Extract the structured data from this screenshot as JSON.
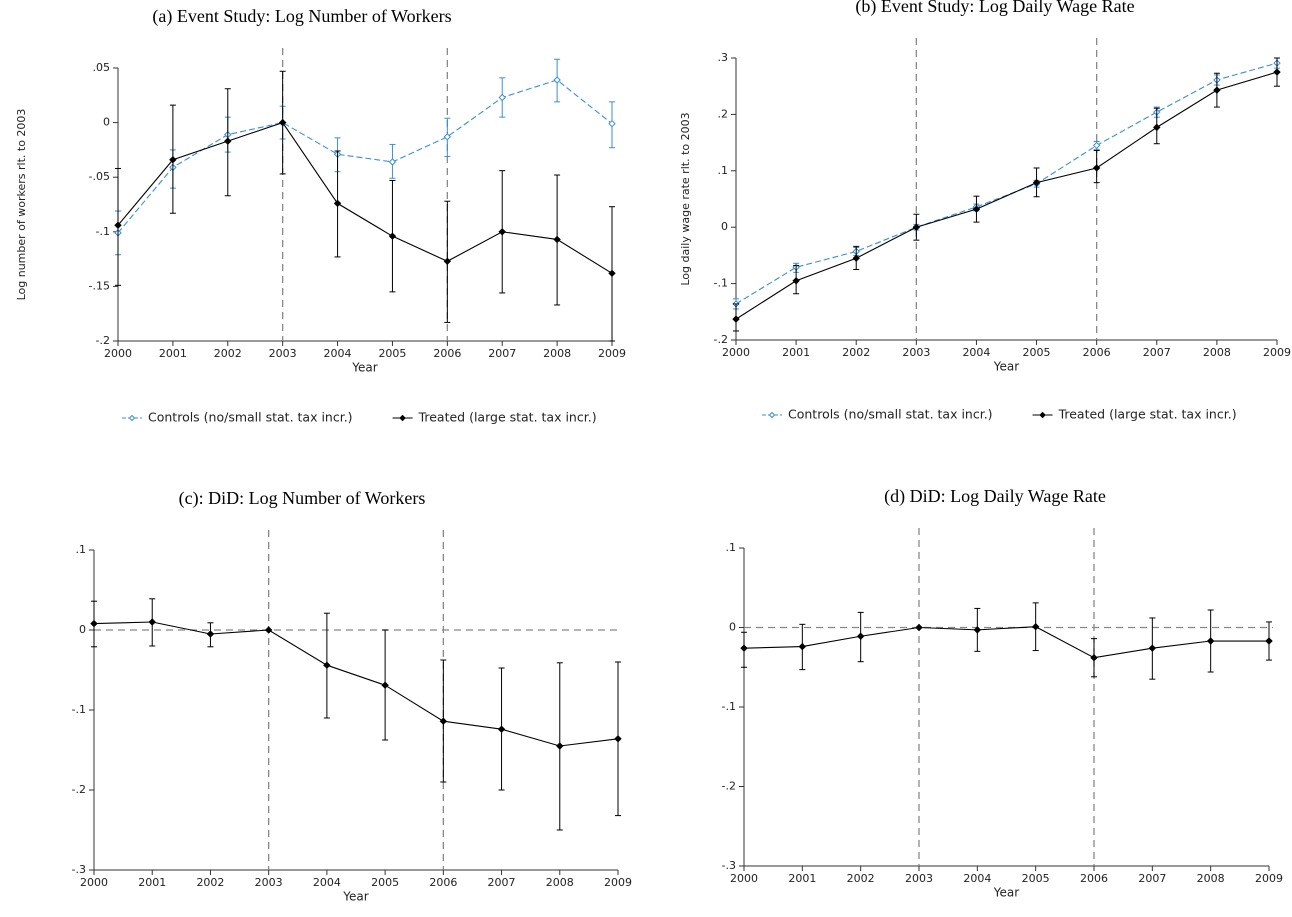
{
  "chart_data": [
    {
      "type": "line",
      "title": "(a) Event Study: Log Number of Workers",
      "x_label": "Year",
      "y_label": "Log number of workers rlt. to 2003",
      "x": [
        2000,
        2001,
        2002,
        2003,
        2004,
        2005,
        2006,
        2007,
        2008,
        2009
      ],
      "xlim": [
        2000,
        2009
      ],
      "xticks": [
        2000,
        2001,
        2002,
        2003,
        2004,
        2005,
        2006,
        2007,
        2008,
        2009
      ],
      "ylim": [
        -0.2,
        0.05
      ],
      "yticks": [
        {
          "value": 0.05,
          "label": ".05"
        },
        0,
        {
          "value": -0.05,
          "label": "-.05"
        },
        {
          "value": -0.1,
          "label": "-.1"
        },
        {
          "value": -0.15,
          "label": "-.15"
        },
        {
          "value": -0.2,
          "label": "-.2"
        }
      ],
      "vlines": [
        2003,
        2006
      ],
      "hlines": [],
      "legend": "bottom",
      "series": [
        {
          "name": "Controls (no/small stat. tax incr.)",
          "color": "#3a8fd6",
          "line_style": "dashed",
          "marker": "hollow-diamond",
          "values": [
            -0.101,
            -0.041,
            -0.011,
            0,
            -0.029,
            -0.036,
            -0.013,
            0.023,
            0.039,
            -0.001
          ],
          "ci_low": [
            -0.121,
            -0.06,
            -0.027,
            -0.015,
            -0.045,
            -0.051,
            -0.031,
            0.005,
            0.019,
            -0.023
          ],
          "ci_high": [
            -0.081,
            -0.025,
            0.005,
            0.015,
            -0.014,
            -0.02,
            0.004,
            0.041,
            0.058,
            0.019
          ]
        },
        {
          "name": "Treated (large stat. tax incr.)",
          "color": "#000000",
          "line_style": "solid",
          "marker": "diamond",
          "values": [
            -0.094,
            -0.034,
            -0.017,
            0,
            -0.074,
            -0.104,
            -0.127,
            -0.1,
            -0.107,
            -0.138
          ],
          "ci_low": [
            -0.149,
            -0.083,
            -0.067,
            -0.047,
            -0.123,
            -0.155,
            -0.183,
            -0.156,
            -0.167,
            -0.2
          ],
          "ci_high": [
            -0.042,
            0.016,
            0.031,
            0.047,
            -0.026,
            -0.053,
            -0.072,
            -0.044,
            -0.048,
            -0.077
          ]
        }
      ]
    },
    {
      "type": "line",
      "title": "(b) Event Study: Log Daily Wage Rate",
      "x_label": "Year",
      "y_label": "Log daily wage rate rlt. to 2003",
      "x": [
        2000,
        2001,
        2002,
        2003,
        2004,
        2005,
        2006,
        2007,
        2008,
        2009
      ],
      "xlim": [
        2000,
        2009
      ],
      "xticks": [
        2000,
        2001,
        2002,
        2003,
        2004,
        2005,
        2006,
        2007,
        2008,
        2009
      ],
      "ylim": [
        -0.2,
        0.3
      ],
      "yticks": [
        {
          "value": 0.3,
          "label": ".3"
        },
        {
          "value": 0.2,
          "label": ".2"
        },
        {
          "value": 0.1,
          "label": ".1"
        },
        0,
        {
          "value": -0.1,
          "label": "-.1"
        },
        {
          "value": -0.2,
          "label": "-.2"
        }
      ],
      "vlines": [
        2003,
        2006
      ],
      "hlines": [],
      "legend": "bottom",
      "series": [
        {
          "name": "Controls (no/small stat. tax incr.)",
          "color": "#3a8fd6",
          "line_style": "dashed",
          "marker": "hollow-diamond",
          "values": [
            -0.136,
            -0.071,
            -0.043,
            0,
            0.036,
            0.077,
            0.145,
            0.204,
            0.261,
            0.291
          ],
          "ci_low": [
            -0.145,
            -0.08,
            -0.05,
            -0.005,
            0.029,
            0.071,
            0.138,
            0.195,
            0.252,
            0.282
          ],
          "ci_high": [
            -0.127,
            -0.064,
            -0.036,
            0.005,
            0.041,
            0.083,
            0.152,
            0.213,
            0.27,
            0.3
          ]
        },
        {
          "name": "Treated (large stat. tax incr.)",
          "color": "#000000",
          "line_style": "solid",
          "marker": "diamond",
          "values": [
            -0.163,
            -0.095,
            -0.055,
            0,
            0.032,
            0.079,
            0.105,
            0.177,
            0.243,
            0.275
          ],
          "ci_low": [
            -0.184,
            -0.118,
            -0.075,
            -0.023,
            0.009,
            0.054,
            0.079,
            0.148,
            0.213,
            0.25
          ],
          "ci_high": [
            -0.136,
            -0.068,
            -0.034,
            0.023,
            0.055,
            0.105,
            0.136,
            0.211,
            0.273,
            0.3
          ]
        }
      ]
    },
    {
      "type": "line",
      "title": "(c): DiD: Log Number of Workers",
      "x_label": "Year",
      "x": [
        2000,
        2001,
        2002,
        2003,
        2004,
        2005,
        2006,
        2007,
        2008,
        2009
      ],
      "xlim": [
        2000,
        2009
      ],
      "xticks": [
        2000,
        2001,
        2002,
        2003,
        2004,
        2005,
        2006,
        2007,
        2008,
        2009
      ],
      "ylim": [
        -0.3,
        0.1
      ],
      "yticks": [
        {
          "value": 0.1,
          "label": ".1"
        },
        0,
        {
          "value": -0.1,
          "label": "-.1"
        },
        {
          "value": -0.2,
          "label": "-.2"
        },
        {
          "value": -0.3,
          "label": "-.3"
        }
      ],
      "vlines": [
        2003,
        2006
      ],
      "hlines": [
        0
      ],
      "series": [
        {
          "color": "#000000",
          "line_style": "solid",
          "marker": "diamond",
          "values": [
            0.008,
            0.01,
            -0.005,
            0,
            -0.044,
            -0.069,
            -0.114,
            -0.124,
            -0.145,
            -0.136
          ],
          "ci_low": [
            -0.021,
            -0.02,
            -0.021,
            null,
            -0.11,
            -0.1375,
            -0.19,
            -0.2,
            -0.25,
            -0.232
          ],
          "ci_high": [
            0.036,
            0.039,
            0.009,
            null,
            0.021,
            0,
            -0.0375,
            -0.0475,
            -0.041,
            -0.04
          ]
        }
      ]
    },
    {
      "type": "line",
      "title": "(d) DiD: Log Daily Wage Rate",
      "x_label": "Year",
      "x": [
        2000,
        2001,
        2002,
        2003,
        2004,
        2005,
        2006,
        2007,
        2008,
        2009
      ],
      "xlim": [
        2000,
        2009
      ],
      "xticks": [
        2000,
        2001,
        2002,
        2003,
        2004,
        2005,
        2006,
        2007,
        2008,
        2009
      ],
      "ylim": [
        -0.3,
        0.1
      ],
      "yticks": [
        {
          "value": 0.1,
          "label": ".1"
        },
        0,
        {
          "value": -0.1,
          "label": "-.1"
        },
        {
          "value": -0.2,
          "label": "-.2"
        },
        {
          "value": -0.3,
          "label": "-.3"
        }
      ],
      "vlines": [
        2003,
        2006
      ],
      "hlines": [
        0
      ],
      "series": [
        {
          "color": "#000000",
          "line_style": "solid",
          "marker": "diamond",
          "values": [
            -0.026,
            -0.024,
            -0.011,
            0,
            -0.003,
            0.001,
            -0.038,
            -0.026,
            -0.017,
            -0.017
          ],
          "ci_low": [
            -0.05,
            -0.053,
            -0.043,
            null,
            -0.03,
            -0.029,
            -0.062,
            -0.065,
            -0.056,
            -0.041
          ],
          "ci_high": [
            -0.006,
            0.004,
            0.019,
            null,
            0.024,
            0.031,
            -0.014,
            0.012,
            0.022,
            0.007
          ]
        }
      ]
    }
  ]
}
